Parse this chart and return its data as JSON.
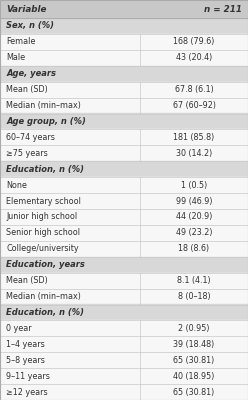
{
  "header": [
    "Variable",
    "n = 211"
  ],
  "header_bg": "#c8c8c8",
  "header_text_color": "#333333",
  "section_bg": "#d8d8d8",
  "row_bg": "#f7f7f7",
  "divider_color": "#c8c8c8",
  "border_color": "#aaaaaa",
  "text_color": "#333333",
  "rows": [
    {
      "type": "section",
      "label": "Sex, n (%)"
    },
    {
      "type": "data",
      "label": "Female",
      "value": "168 (79.6)"
    },
    {
      "type": "data",
      "label": "Male",
      "value": "43 (20.4)"
    },
    {
      "type": "section",
      "label": "Age, years"
    },
    {
      "type": "data",
      "label": "Mean (SD)",
      "value": "67.8 (6.1)"
    },
    {
      "type": "data",
      "label": "Median (min–max)",
      "value": "67 (60–92)"
    },
    {
      "type": "section",
      "label": "Age group, n (%)"
    },
    {
      "type": "data",
      "label": "60–74 years",
      "value": "181 (85.8)"
    },
    {
      "type": "data",
      "label": "≥75 years",
      "value": "30 (14.2)"
    },
    {
      "type": "section",
      "label": "Education, n (%)"
    },
    {
      "type": "data",
      "label": "None",
      "value": "1 (0.5)"
    },
    {
      "type": "data",
      "label": "Elementary school",
      "value": "99 (46.9)"
    },
    {
      "type": "data",
      "label": "Junior high school",
      "value": "44 (20.9)"
    },
    {
      "type": "data",
      "label": "Senior high school",
      "value": "49 (23.2)"
    },
    {
      "type": "data",
      "label": "College/university",
      "value": "18 (8.6)"
    },
    {
      "type": "section",
      "label": "Education, years"
    },
    {
      "type": "data",
      "label": "Mean (SD)",
      "value": "8.1 (4.1)"
    },
    {
      "type": "data",
      "label": "Median (min–max)",
      "value": "8 (0–18)"
    },
    {
      "type": "section",
      "label": "Education, n (%)"
    },
    {
      "type": "data",
      "label": "0 year",
      "value": "2 (0.95)"
    },
    {
      "type": "data",
      "label": "1–4 years",
      "value": "39 (18.48)"
    },
    {
      "type": "data",
      "label": "5–8 years",
      "value": "65 (30.81)"
    },
    {
      "type": "data",
      "label": "9–11 years",
      "value": "40 (18.95)"
    },
    {
      "type": "data",
      "label": "≥12 years",
      "value": "65 (30.81)"
    }
  ],
  "col_split": 0.565,
  "font_size": 5.8,
  "header_font_size": 6.3,
  "section_font_size": 6.0,
  "fig_width": 2.48,
  "fig_height": 4.0,
  "dpi": 100
}
